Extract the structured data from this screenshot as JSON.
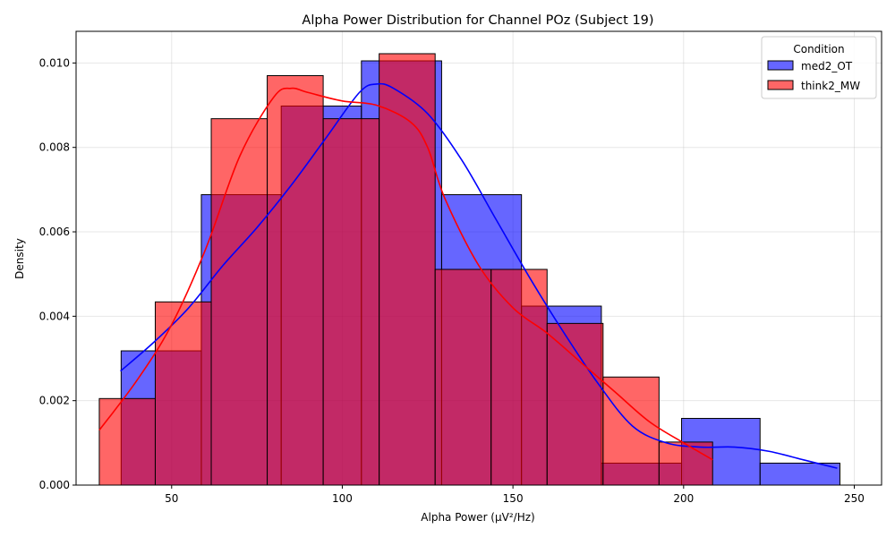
{
  "chart_data": {
    "type": "histogram",
    "title": "Alpha Power Distribution for Channel POz (Subject 19)",
    "xlabel": "Alpha Power (μV²/Hz)",
    "ylabel": "Density",
    "xlim": [
      22,
      258
    ],
    "ylim": [
      0,
      0.01075
    ],
    "xticks": [
      50,
      100,
      150,
      200,
      250
    ],
    "yticks": [
      0.0,
      0.002,
      0.004,
      0.006,
      0.008,
      0.01
    ],
    "ytick_labels": [
      "0.000",
      "0.002",
      "0.004",
      "0.006",
      "0.008",
      "0.010"
    ],
    "grid": true,
    "legend": {
      "title": "Condition",
      "position": "top-right"
    },
    "series": [
      {
        "name": "med2_OT",
        "color": "#0000ff",
        "kde_color": "#0000ff",
        "bins": [
          {
            "x0": 35.2,
            "x1": 58.7,
            "density": 0.00318
          },
          {
            "x0": 58.7,
            "x1": 82.1,
            "density": 0.00688
          },
          {
            "x0": 82.1,
            "x1": 105.6,
            "density": 0.00898
          },
          {
            "x0": 105.6,
            "x1": 129.1,
            "density": 0.01005
          },
          {
            "x0": 129.1,
            "x1": 152.5,
            "density": 0.00688
          },
          {
            "x0": 152.5,
            "x1": 175.9,
            "density": 0.00424
          },
          {
            "x0": 175.9,
            "x1": 199.4,
            "density": 0.00052
          },
          {
            "x0": 199.4,
            "x1": 222.4,
            "density": 0.00158
          },
          {
            "x0": 222.4,
            "x1": 245.8,
            "density": 0.00052
          }
        ],
        "kde": {
          "x": [
            35,
            45,
            55,
            65,
            75,
            85,
            95,
            105,
            110,
            115,
            125,
            135,
            145,
            155,
            165,
            175,
            185,
            195,
            205,
            215,
            225,
            235,
            245
          ],
          "y": [
            0.0027,
            0.0034,
            0.0042,
            0.0052,
            0.0061,
            0.0071,
            0.0082,
            0.0093,
            0.0095,
            0.0094,
            0.0088,
            0.0077,
            0.0063,
            0.0049,
            0.0036,
            0.0024,
            0.0014,
            0.001,
            0.0009,
            0.0009,
            0.0008,
            0.0006,
            0.0004
          ]
        }
      },
      {
        "name": "think2_MW",
        "color": "#ff0000",
        "kde_color": "#ff0000",
        "bins": [
          {
            "x0": 28.8,
            "x1": 45.2,
            "density": 0.00205
          },
          {
            "x0": 45.2,
            "x1": 61.6,
            "density": 0.00434
          },
          {
            "x0": 61.6,
            "x1": 78.0,
            "density": 0.00868
          },
          {
            "x0": 78.0,
            "x1": 94.4,
            "density": 0.0097
          },
          {
            "x0": 94.4,
            "x1": 110.8,
            "density": 0.00868
          },
          {
            "x0": 110.8,
            "x1": 127.2,
            "density": 0.01022
          },
          {
            "x0": 127.2,
            "x1": 143.6,
            "density": 0.00511
          },
          {
            "x0": 143.6,
            "x1": 160.0,
            "density": 0.00511
          },
          {
            "x0": 160.0,
            "x1": 176.4,
            "density": 0.00383
          },
          {
            "x0": 176.4,
            "x1": 192.8,
            "density": 0.00256
          },
          {
            "x0": 192.8,
            "x1": 208.5,
            "density": 0.00102
          }
        ],
        "kde": {
          "x": [
            28.8,
            40,
            50,
            60,
            70,
            80,
            85,
            90,
            100,
            110,
            120,
            125,
            130,
            140,
            150,
            160,
            170,
            180,
            190,
            200,
            208.5
          ],
          "y": [
            0.0013,
            0.0025,
            0.0038,
            0.0056,
            0.0078,
            0.0092,
            0.0094,
            0.0093,
            0.0091,
            0.009,
            0.0086,
            0.008,
            0.0068,
            0.0052,
            0.0042,
            0.0036,
            0.0029,
            0.0022,
            0.0015,
            0.001,
            0.0006
          ]
        }
      }
    ]
  }
}
